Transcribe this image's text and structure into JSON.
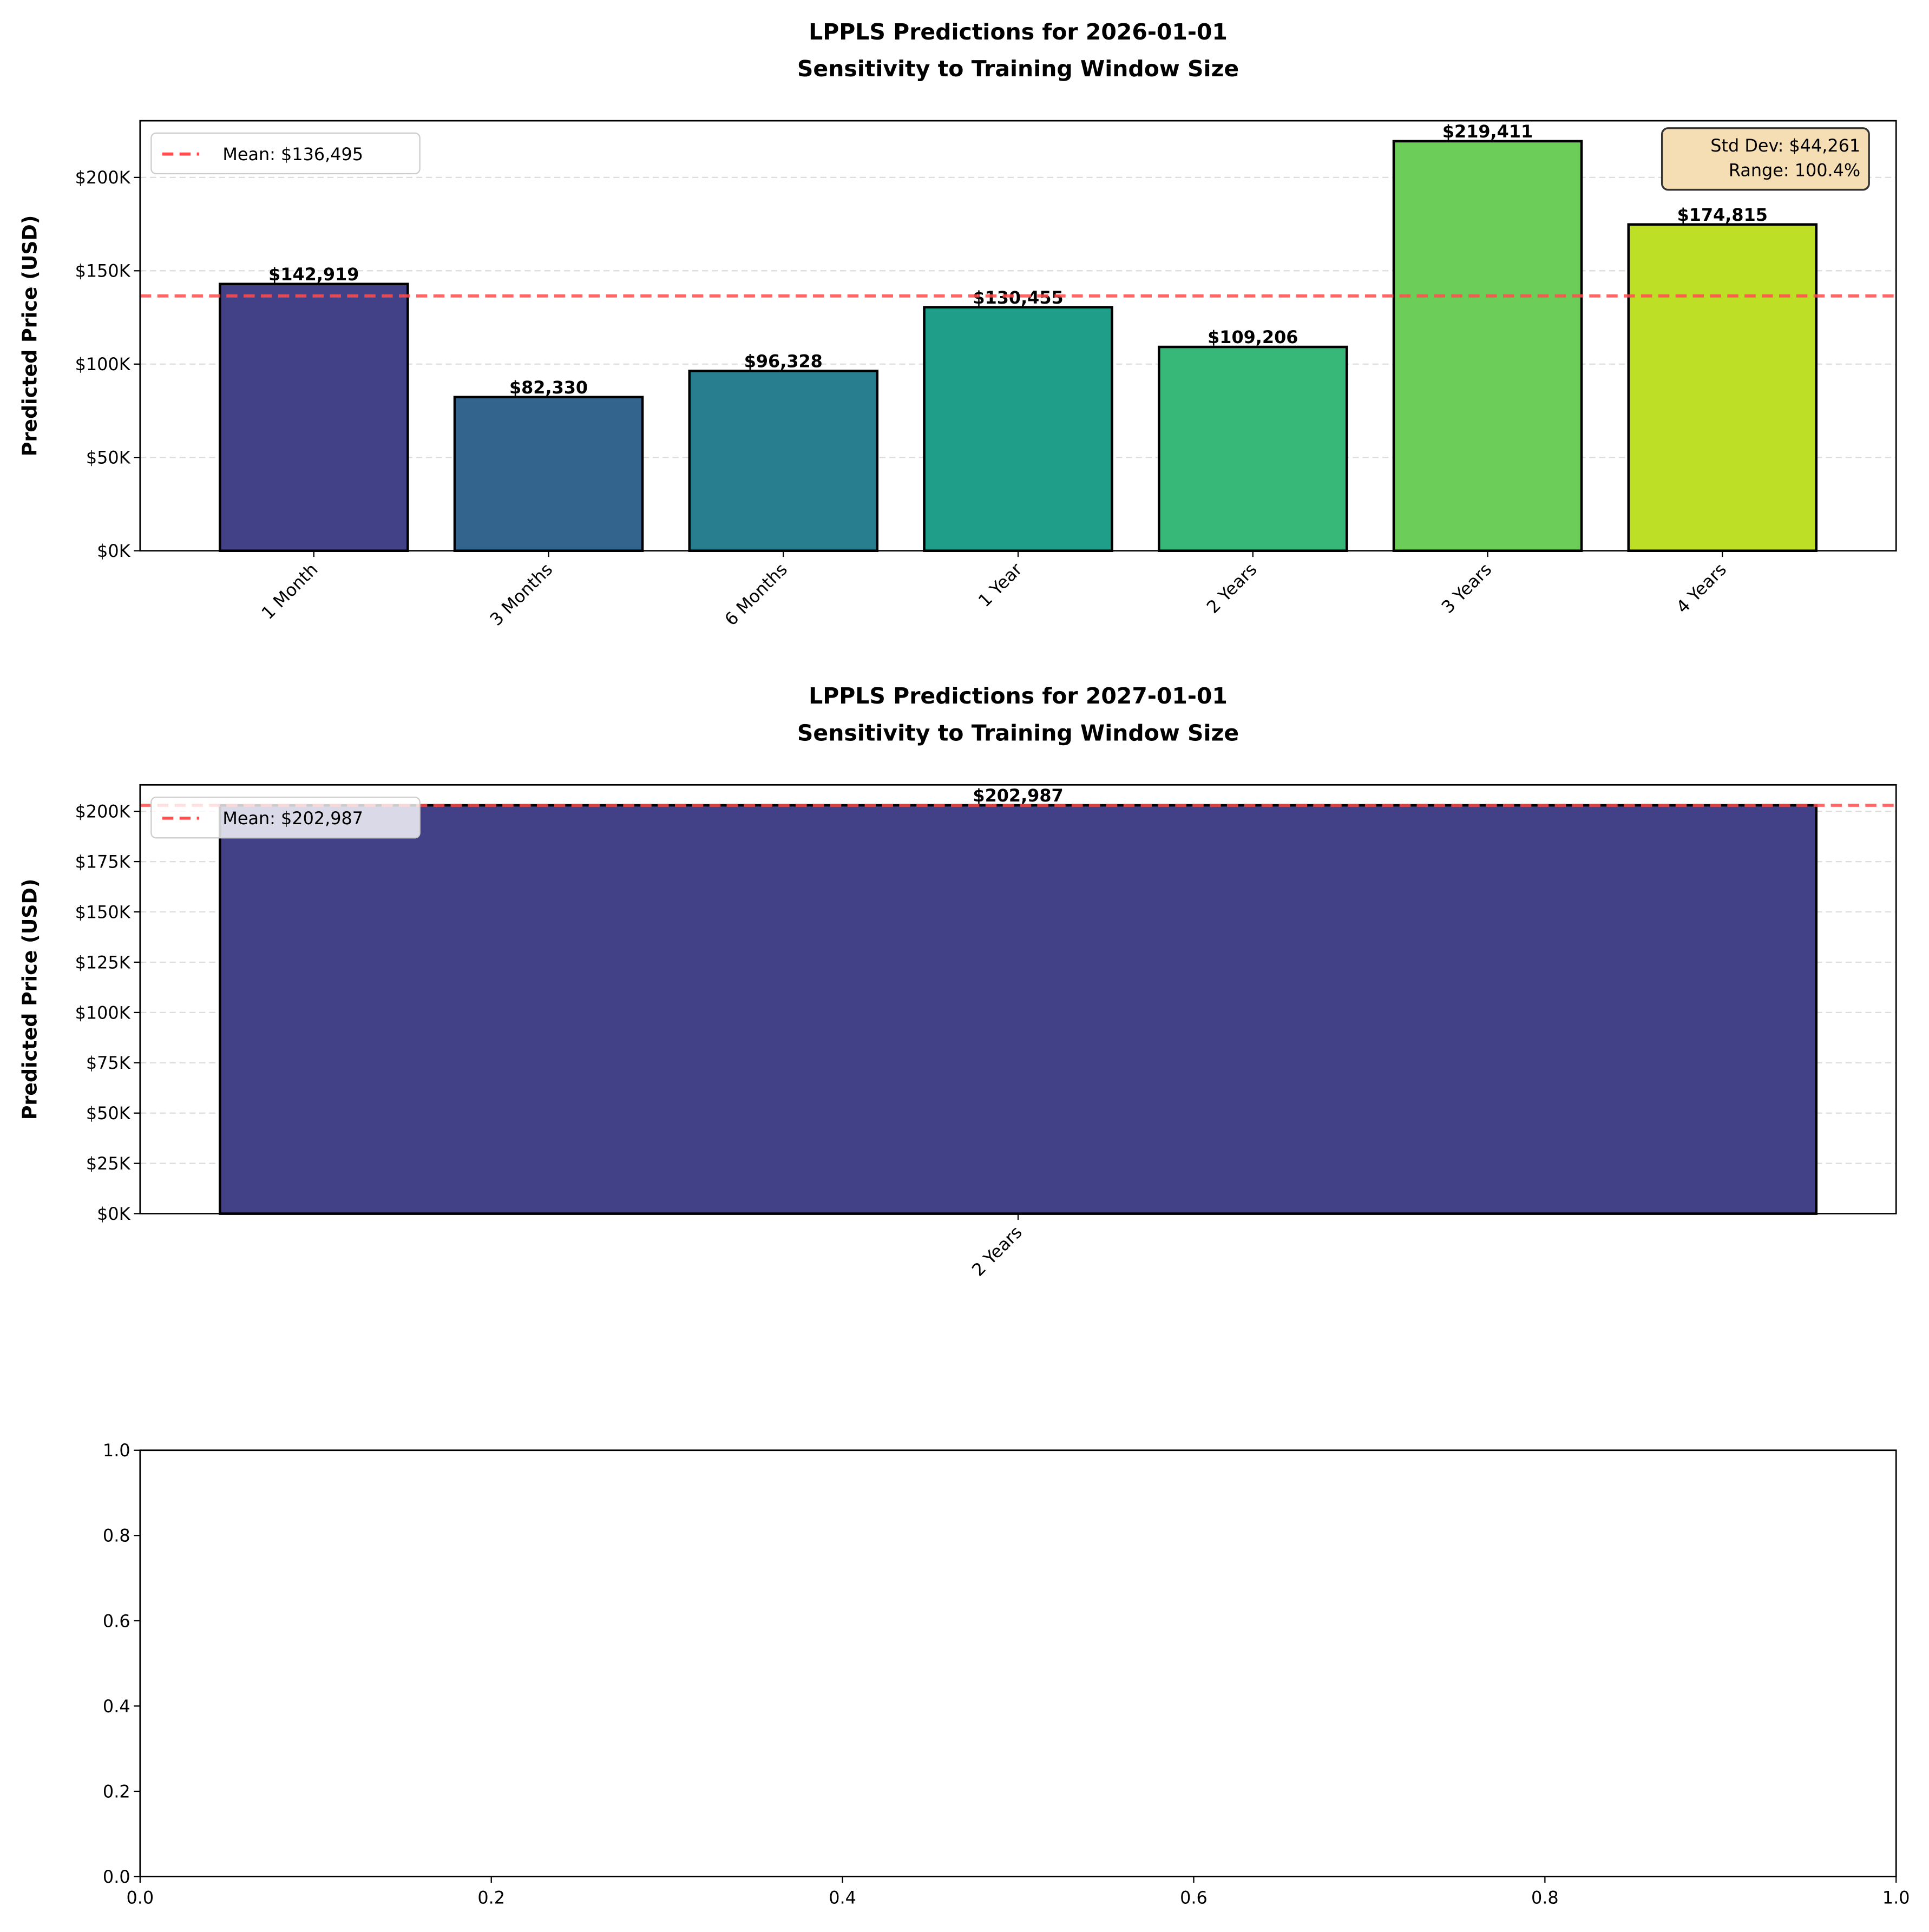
{
  "chart_data": [
    {
      "type": "bar",
      "title": "LPPLS Predictions for 2026-01-01",
      "subtitle": "Sensitivity to Training Window Size",
      "ylabel": "Predicted Price (USD)",
      "xlabel": "",
      "categories": [
        "1 Month",
        "3 Months",
        "6 Months",
        "1 Year",
        "2 Years",
        "3 Years",
        "4 Years"
      ],
      "values": [
        142919,
        82330,
        96328,
        130455,
        109206,
        219411,
        174815
      ],
      "value_labels": [
        "$142,919",
        "$82,330",
        "$96,328",
        "$130,455",
        "$109,206",
        "$219,411",
        "$174,815"
      ],
      "colors": [
        "#424086",
        "#32648e",
        "#287d8e",
        "#1f9e89",
        "#37b878",
        "#6ccd59",
        "#bddf26"
      ],
      "ylim": [
        0,
        230363
      ],
      "xlim": [
        -0.74,
        6.74
      ],
      "yticks": [
        0,
        50000,
        100000,
        150000,
        200000
      ],
      "ytick_labels": [
        "$0K",
        "$50K",
        "$100K",
        "$150K",
        "$200K"
      ],
      "mean": 136495,
      "mean_label": "Mean: $136,495",
      "legend_position": "upper-left",
      "stats_box": [
        "Std Dev: $44,261",
        "Range: 100.4%"
      ],
      "grid": "y dashed",
      "mean_color": "#ff4d4d",
      "stats_box_color": "#f5deb3"
    },
    {
      "type": "bar",
      "title": "LPPLS Predictions for 2027-01-01",
      "subtitle": "Sensitivity to Training Window Size",
      "ylabel": "Predicted Price (USD)",
      "xlabel": "",
      "categories": [
        "2 Years"
      ],
      "values": [
        202987
      ],
      "value_labels": [
        "$202,987"
      ],
      "colors": [
        "#424086"
      ],
      "ylim": [
        0,
        213136
      ],
      "xlim": [
        -0.44,
        0.44
      ],
      "yticks": [
        0,
        25000,
        50000,
        75000,
        100000,
        125000,
        150000,
        175000,
        200000
      ],
      "ytick_labels": [
        "$0K",
        "$25K",
        "$50K",
        "$75K",
        "$100K",
        "$125K",
        "$150K",
        "$175K",
        "$200K"
      ],
      "mean": 202987,
      "mean_label": "Mean: $202,987",
      "legend_position": "upper-left",
      "grid": "y dashed",
      "mean_color": "#ff4d4d"
    },
    {
      "type": "empty",
      "xlim": [
        0,
        1
      ],
      "ylim": [
        0,
        1
      ],
      "xtick_labels": [
        "0.0",
        "0.2",
        "0.4",
        "0.6",
        "0.8",
        "1.0"
      ],
      "ytick_labels": [
        "0.0",
        "0.2",
        "0.4",
        "0.6",
        "0.8",
        "1.0"
      ]
    }
  ]
}
